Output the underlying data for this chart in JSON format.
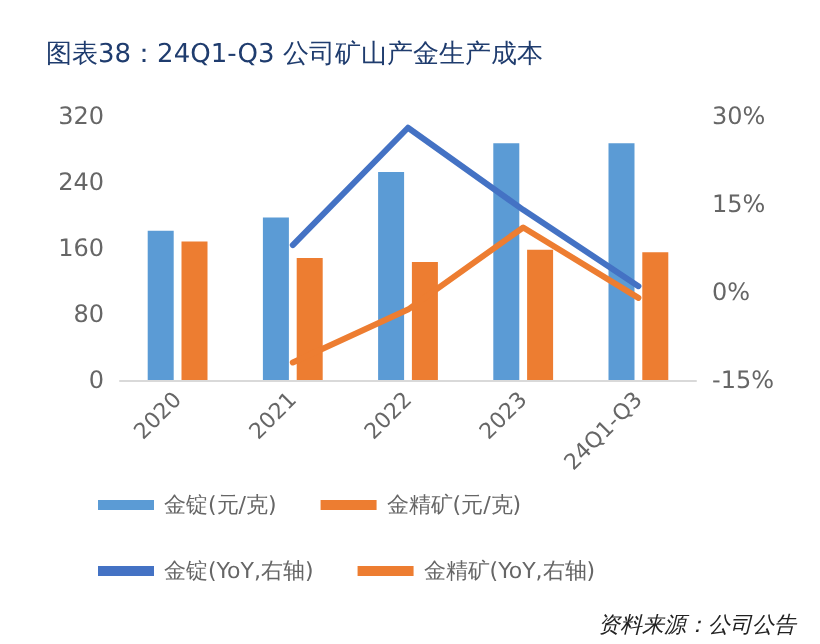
{
  "chart_data": {
    "type": "bar",
    "title": "图表38：24Q1-Q3 公司矿山产金生产成本",
    "categories": [
      "2020",
      "2021",
      "2022",
      "2023",
      "24Q1-Q3"
    ],
    "series": [
      {
        "name": "金锭(元/克)",
        "color": "#5b9bd5",
        "values": [
          181,
          197,
          252,
          287,
          287
        ]
      },
      {
        "name": "金精矿(元/克)",
        "color": "#ed7d31",
        "values": [
          168,
          148,
          143,
          158,
          155
        ]
      },
      {
        "name": "金锭(YoY,右轴)",
        "type": "line",
        "axis": "y2",
        "color": "#4472c4",
        "values": [
          null,
          8,
          28,
          14,
          1
        ]
      },
      {
        "name": "金精矿(YoY,右轴)",
        "type": "line",
        "axis": "y2",
        "color": "#ed7d31",
        "values": [
          null,
          -12,
          -3,
          11,
          -1
        ]
      }
    ],
    "ylim": [
      0,
      320
    ],
    "yticks": [
      0,
      80,
      160,
      240,
      320
    ],
    "y2lim": [
      -15,
      30
    ],
    "y2ticks": [
      {
        "value": -15,
        "label": "-15%"
      },
      {
        "value": 0,
        "label": "0%"
      },
      {
        "value": 15,
        "label": "15%"
      },
      {
        "value": 30,
        "label": "30%"
      }
    ],
    "legend": "bottom",
    "grid": false,
    "marker": "none",
    "line_style": "solid",
    "annotations": [
      "资料来源：公司公告"
    ]
  }
}
